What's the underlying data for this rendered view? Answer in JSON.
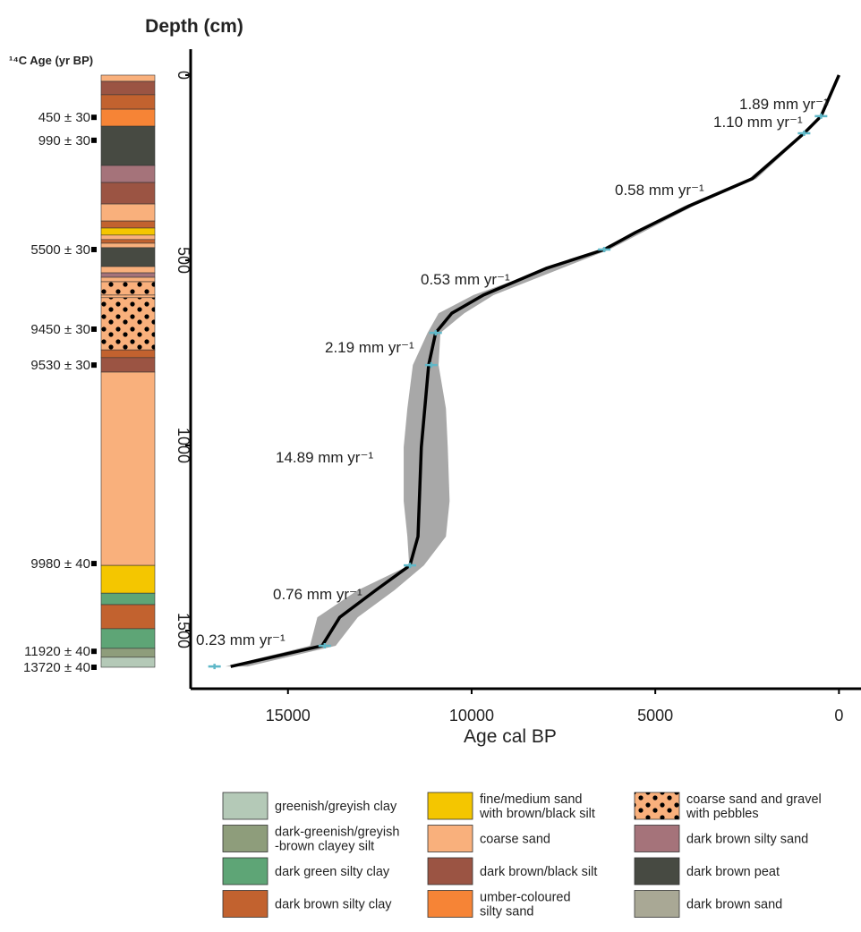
{
  "chart_data": {
    "type": "line",
    "title": "Depth (cm)",
    "column_title": "¹⁴C Age (yr BP)",
    "x_label": "Age cal BP",
    "xlim": [
      17650,
      -600
    ],
    "xticks": [
      15000,
      10000,
      5000,
      0
    ],
    "ylim": [
      -70,
      1657
    ],
    "yticks": [
      0,
      500,
      1000,
      1500
    ],
    "y_inverted": true,
    "series": [
      {
        "color": "#000000",
        "x": [
          0,
          488,
          950,
          2366,
          4070,
          5540,
          6390,
          7975,
          9680,
          10540,
          10980,
          11170,
          11370,
          11460,
          11680,
          12610,
          13590,
          14070,
          16560
        ],
        "y": [
          0,
          111,
          157,
          280,
          353,
          425,
          471,
          522,
          594,
          643,
          696,
          783,
          1005,
          1246,
          1324,
          1391,
          1464,
          1541,
          1597
        ]
      }
    ],
    "band": {
      "color": "#a8a8a8",
      "y": [
        0,
        111,
        157,
        280,
        353,
        471,
        594,
        643,
        696,
        783,
        900,
        1005,
        1150,
        1246,
        1324,
        1391,
        1464,
        1541,
        1597
      ],
      "x_old": [
        0,
        520,
        1000,
        2450,
        4200,
        6500,
        9950,
        10900,
        11200,
        11600,
        11750,
        11850,
        11850,
        11750,
        11700,
        13100,
        14200,
        14400,
        16700
      ],
      "x_young": [
        0,
        460,
        900,
        2250,
        3950,
        6250,
        9400,
        10200,
        10850,
        10900,
        10700,
        10650,
        10600,
        10700,
        11300,
        12100,
        13100,
        13700,
        16100
      ]
    },
    "markers": {
      "color": "#5fb8c8",
      "x": [
        488,
        950,
        6390,
        10980,
        11100,
        11680,
        14000,
        17000
      ],
      "y": [
        111,
        157,
        471,
        696,
        783,
        1324,
        1541,
        1597
      ]
    },
    "annotations": [
      "1.89 mm yr⁻¹",
      "1.10 mm yr⁻¹",
      "0.58 mm yr⁻¹",
      "0.53 mm yr⁻¹",
      "2.19 mm yr⁻¹",
      "14.89 mm yr⁻¹",
      "0.76 mm yr⁻¹",
      "0.23 mm yr⁻¹"
    ],
    "dates": [
      {
        "label": "450 ± 30",
        "depth": 114
      },
      {
        "label": "990 ± 30",
        "depth": 176
      },
      {
        "label": "5500 ± 30",
        "depth": 471
      },
      {
        "label": "9450 ± 30",
        "depth": 686
      },
      {
        "label": "9530 ± 30",
        "depth": 783
      },
      {
        "label": "9980 ± 40",
        "depth": 1319
      },
      {
        "label": "11920 ± 40",
        "depth": 1556
      },
      {
        "label": "13720 ± 40",
        "depth": 1599
      }
    ],
    "layers": [
      {
        "top": 0,
        "bottom": 17,
        "color": "#f9b07c"
      },
      {
        "top": 17,
        "bottom": 53,
        "color": "#9b5443"
      },
      {
        "top": 53,
        "bottom": 92,
        "color": "#c2622f"
      },
      {
        "top": 92,
        "bottom": 138,
        "color": "#f68436"
      },
      {
        "top": 138,
        "bottom": 244,
        "color": "#474a42"
      },
      {
        "top": 244,
        "bottom": 290,
        "color": "#a5737a"
      },
      {
        "top": 290,
        "bottom": 348,
        "color": "#9b5443"
      },
      {
        "top": 348,
        "bottom": 394,
        "color": "#f9b07c"
      },
      {
        "top": 394,
        "bottom": 413,
        "color": "#c2622f"
      },
      {
        "top": 413,
        "bottom": 432,
        "color": "#f4c600"
      },
      {
        "top": 432,
        "bottom": 444,
        "color": "#f9b07c"
      },
      {
        "top": 444,
        "bottom": 454,
        "color": "#c2622f"
      },
      {
        "top": 454,
        "bottom": 466,
        "color": "#f9b07c"
      },
      {
        "top": 466,
        "bottom": 517,
        "color": "#474a42"
      },
      {
        "top": 517,
        "bottom": 534,
        "color": "#f9b07c"
      },
      {
        "top": 534,
        "bottom": 546,
        "color": "#a5737a"
      },
      {
        "top": 546,
        "bottom": 558,
        "color": "#f9b07c"
      },
      {
        "top": 558,
        "bottom": 594,
        "color": "#f9b07c",
        "pebbles": true
      },
      {
        "top": 594,
        "bottom": 601,
        "color": "#f9b07c"
      },
      {
        "top": 601,
        "bottom": 742,
        "color": "#f9b07c",
        "pebbles": true
      },
      {
        "top": 742,
        "bottom": 763,
        "color": "#c2622f"
      },
      {
        "top": 763,
        "bottom": 802,
        "color": "#9b5443"
      },
      {
        "top": 802,
        "bottom": 1324,
        "color": "#f9b07c"
      },
      {
        "top": 1324,
        "bottom": 1399,
        "color": "#f4c600"
      },
      {
        "top": 1399,
        "bottom": 1430,
        "color": "#5ea576"
      },
      {
        "top": 1430,
        "bottom": 1495,
        "color": "#c2622f"
      },
      {
        "top": 1495,
        "bottom": 1548,
        "color": "#5ea576"
      },
      {
        "top": 1548,
        "bottom": 1572,
        "color": "#8e9d7b"
      },
      {
        "top": 1572,
        "bottom": 1599,
        "color": "#b4c9b7"
      }
    ],
    "legend": [
      {
        "label": [
          "greenish/greyish clay"
        ],
        "color": "#b4c9b7"
      },
      {
        "label": [
          "dark-greenish/greyish",
          "-brown clayey silt"
        ],
        "color": "#8e9d7b"
      },
      {
        "label": [
          "dark green silty clay"
        ],
        "color": "#5ea576"
      },
      {
        "label": [
          "dark brown silty clay"
        ],
        "color": "#c2622f"
      },
      {
        "label": [
          "fine/medium sand",
          "with brown/black silt"
        ],
        "color": "#f4c600"
      },
      {
        "label": [
          "coarse sand"
        ],
        "color": "#f9b07c"
      },
      {
        "label": [
          "dark brown/black silt"
        ],
        "color": "#9b5443"
      },
      {
        "label": [
          "umber-coloured",
          "silty sand"
        ],
        "color": "#f68436"
      },
      {
        "label": [
          "coarse sand and gravel",
          "with pebbles"
        ],
        "color": "#f9b07c",
        "pebbles": true
      },
      {
        "label": [
          "dark brown silty sand"
        ],
        "color": "#a5737a"
      },
      {
        "label": [
          "dark brown peat"
        ],
        "color": "#474a42"
      },
      {
        "label": [
          "dark brown sand"
        ],
        "color": "#a9a895"
      }
    ]
  }
}
